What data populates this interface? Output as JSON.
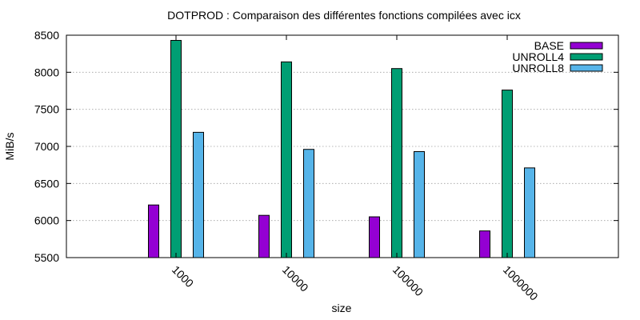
{
  "chart_data": {
    "type": "bar",
    "title": "DOTPROD : Comparaison des différentes fonctions compilées avec icx",
    "xlabel": "size",
    "ylabel": "MiB/s",
    "ylim": [
      5500,
      8500
    ],
    "yticks": [
      "5500",
      "6000",
      "6500",
      "7000",
      "7500",
      "8000",
      "8500"
    ],
    "categories": [
      "1000",
      "10000",
      "100000",
      "1000000"
    ],
    "series": [
      {
        "name": "BASE",
        "color": "#9400d3",
        "values": [
          6210,
          6070,
          6050,
          5860
        ]
      },
      {
        "name": "UNROLL4",
        "color": "#009e73",
        "values": [
          8430,
          8140,
          8050,
          7760
        ]
      },
      {
        "name": "UNROLL8",
        "color": "#56b4e9",
        "values": [
          7190,
          6960,
          6930,
          6710
        ]
      }
    ],
    "grid": true,
    "legend_position": "top-right"
  }
}
